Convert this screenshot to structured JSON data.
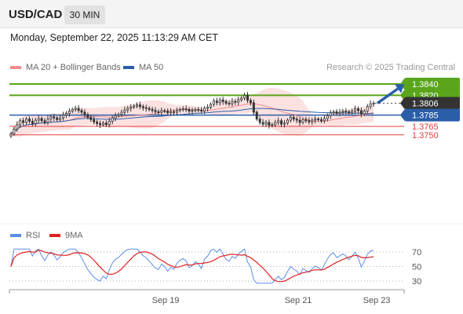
{
  "header": {
    "symbol": "USD/CAD",
    "timeframe": "30 MIN"
  },
  "datetime": "Monday, September 22, 2025 11:13:29 AM CET",
  "legend": {
    "ma20_label": "MA 20 + Bollinger Bands",
    "ma50_label": "MA 50",
    "ma20_color": "#f28b8b",
    "ma50_color": "#2b5ea8",
    "research": "Research © 2025 Trading Central"
  },
  "rsi_legend": {
    "rsi_label": "RSI",
    "ma9_label": "9MA",
    "rsi_color": "#5b8ee6",
    "ma9_color": "#e02020"
  },
  "chart_data": {
    "type": "candlestick",
    "instrument": "USD/CAD",
    "interval": "30 MIN",
    "price_axis": {
      "ylim": [
        1.374,
        1.3845
      ]
    },
    "levels": [
      {
        "value": 1.384,
        "label": "1.3840",
        "kind": "target",
        "color": "#5aa51b"
      },
      {
        "value": 1.382,
        "label": "1.3820",
        "kind": "resistance",
        "color": "#5aa51b"
      },
      {
        "value": 1.3806,
        "label": "1.3806",
        "kind": "last",
        "color": "#333333"
      },
      {
        "value": 1.3785,
        "label": "1.3785",
        "kind": "pivot",
        "color": "#2b5ea8"
      },
      {
        "value": 1.3765,
        "label": "1.3765",
        "kind": "support",
        "color": "#e34040"
      },
      {
        "value": 1.375,
        "label": "1.3750",
        "kind": "support",
        "color": "#e34040"
      }
    ],
    "candles_close": [
      1.3752,
      1.376,
      1.3768,
      1.3775,
      1.3772,
      1.3778,
      1.3774,
      1.377,
      1.3776,
      1.3779,
      1.3775,
      1.3772,
      1.3778,
      1.3782,
      1.378,
      1.3777,
      1.378,
      1.3785,
      1.3788,
      1.3792,
      1.3795,
      1.3797,
      1.3793,
      1.379,
      1.3786,
      1.3781,
      1.3777,
      1.3773,
      1.377,
      1.3768,
      1.3771,
      1.3768,
      1.3774,
      1.378,
      1.3784,
      1.3786,
      1.379,
      1.3794,
      1.3797,
      1.3799,
      1.3801,
      1.3803,
      1.38,
      1.3798,
      1.3797,
      1.3795,
      1.3793,
      1.3791,
      1.379,
      1.3793,
      1.3792,
      1.3789,
      1.3791,
      1.379,
      1.3793,
      1.3795,
      1.3796,
      1.3795,
      1.3792,
      1.3793,
      1.3795,
      1.3794,
      1.3792,
      1.3797,
      1.3799,
      1.3804,
      1.381,
      1.3807,
      1.3812,
      1.3809,
      1.3806,
      1.3805,
      1.3809,
      1.3808,
      1.3812,
      1.3815,
      1.382,
      1.3811,
      1.3807,
      1.379,
      1.3778,
      1.3772,
      1.3769,
      1.3772,
      1.3767,
      1.3768,
      1.3772,
      1.3775,
      1.3769,
      1.3771,
      1.3776,
      1.3781,
      1.3778,
      1.3776,
      1.3772,
      1.3777,
      1.3775,
      1.3773,
      1.3776,
      1.3778,
      1.3777,
      1.3775,
      1.3779,
      1.3784,
      1.3789,
      1.3791,
      1.3788,
      1.379,
      1.3792,
      1.3791,
      1.3789,
      1.3792,
      1.3796,
      1.3793,
      1.3787,
      1.3792,
      1.38,
      1.3805,
      1.3806
    ],
    "forecast": {
      "from": 1.3806,
      "to": 1.384
    },
    "x_ticks": [
      "Sep 19",
      "Sep 21",
      "Sep 23"
    ],
    "rsi": {
      "levels": [
        70,
        50,
        30
      ],
      "ylim": [
        25,
        75
      ]
    }
  }
}
